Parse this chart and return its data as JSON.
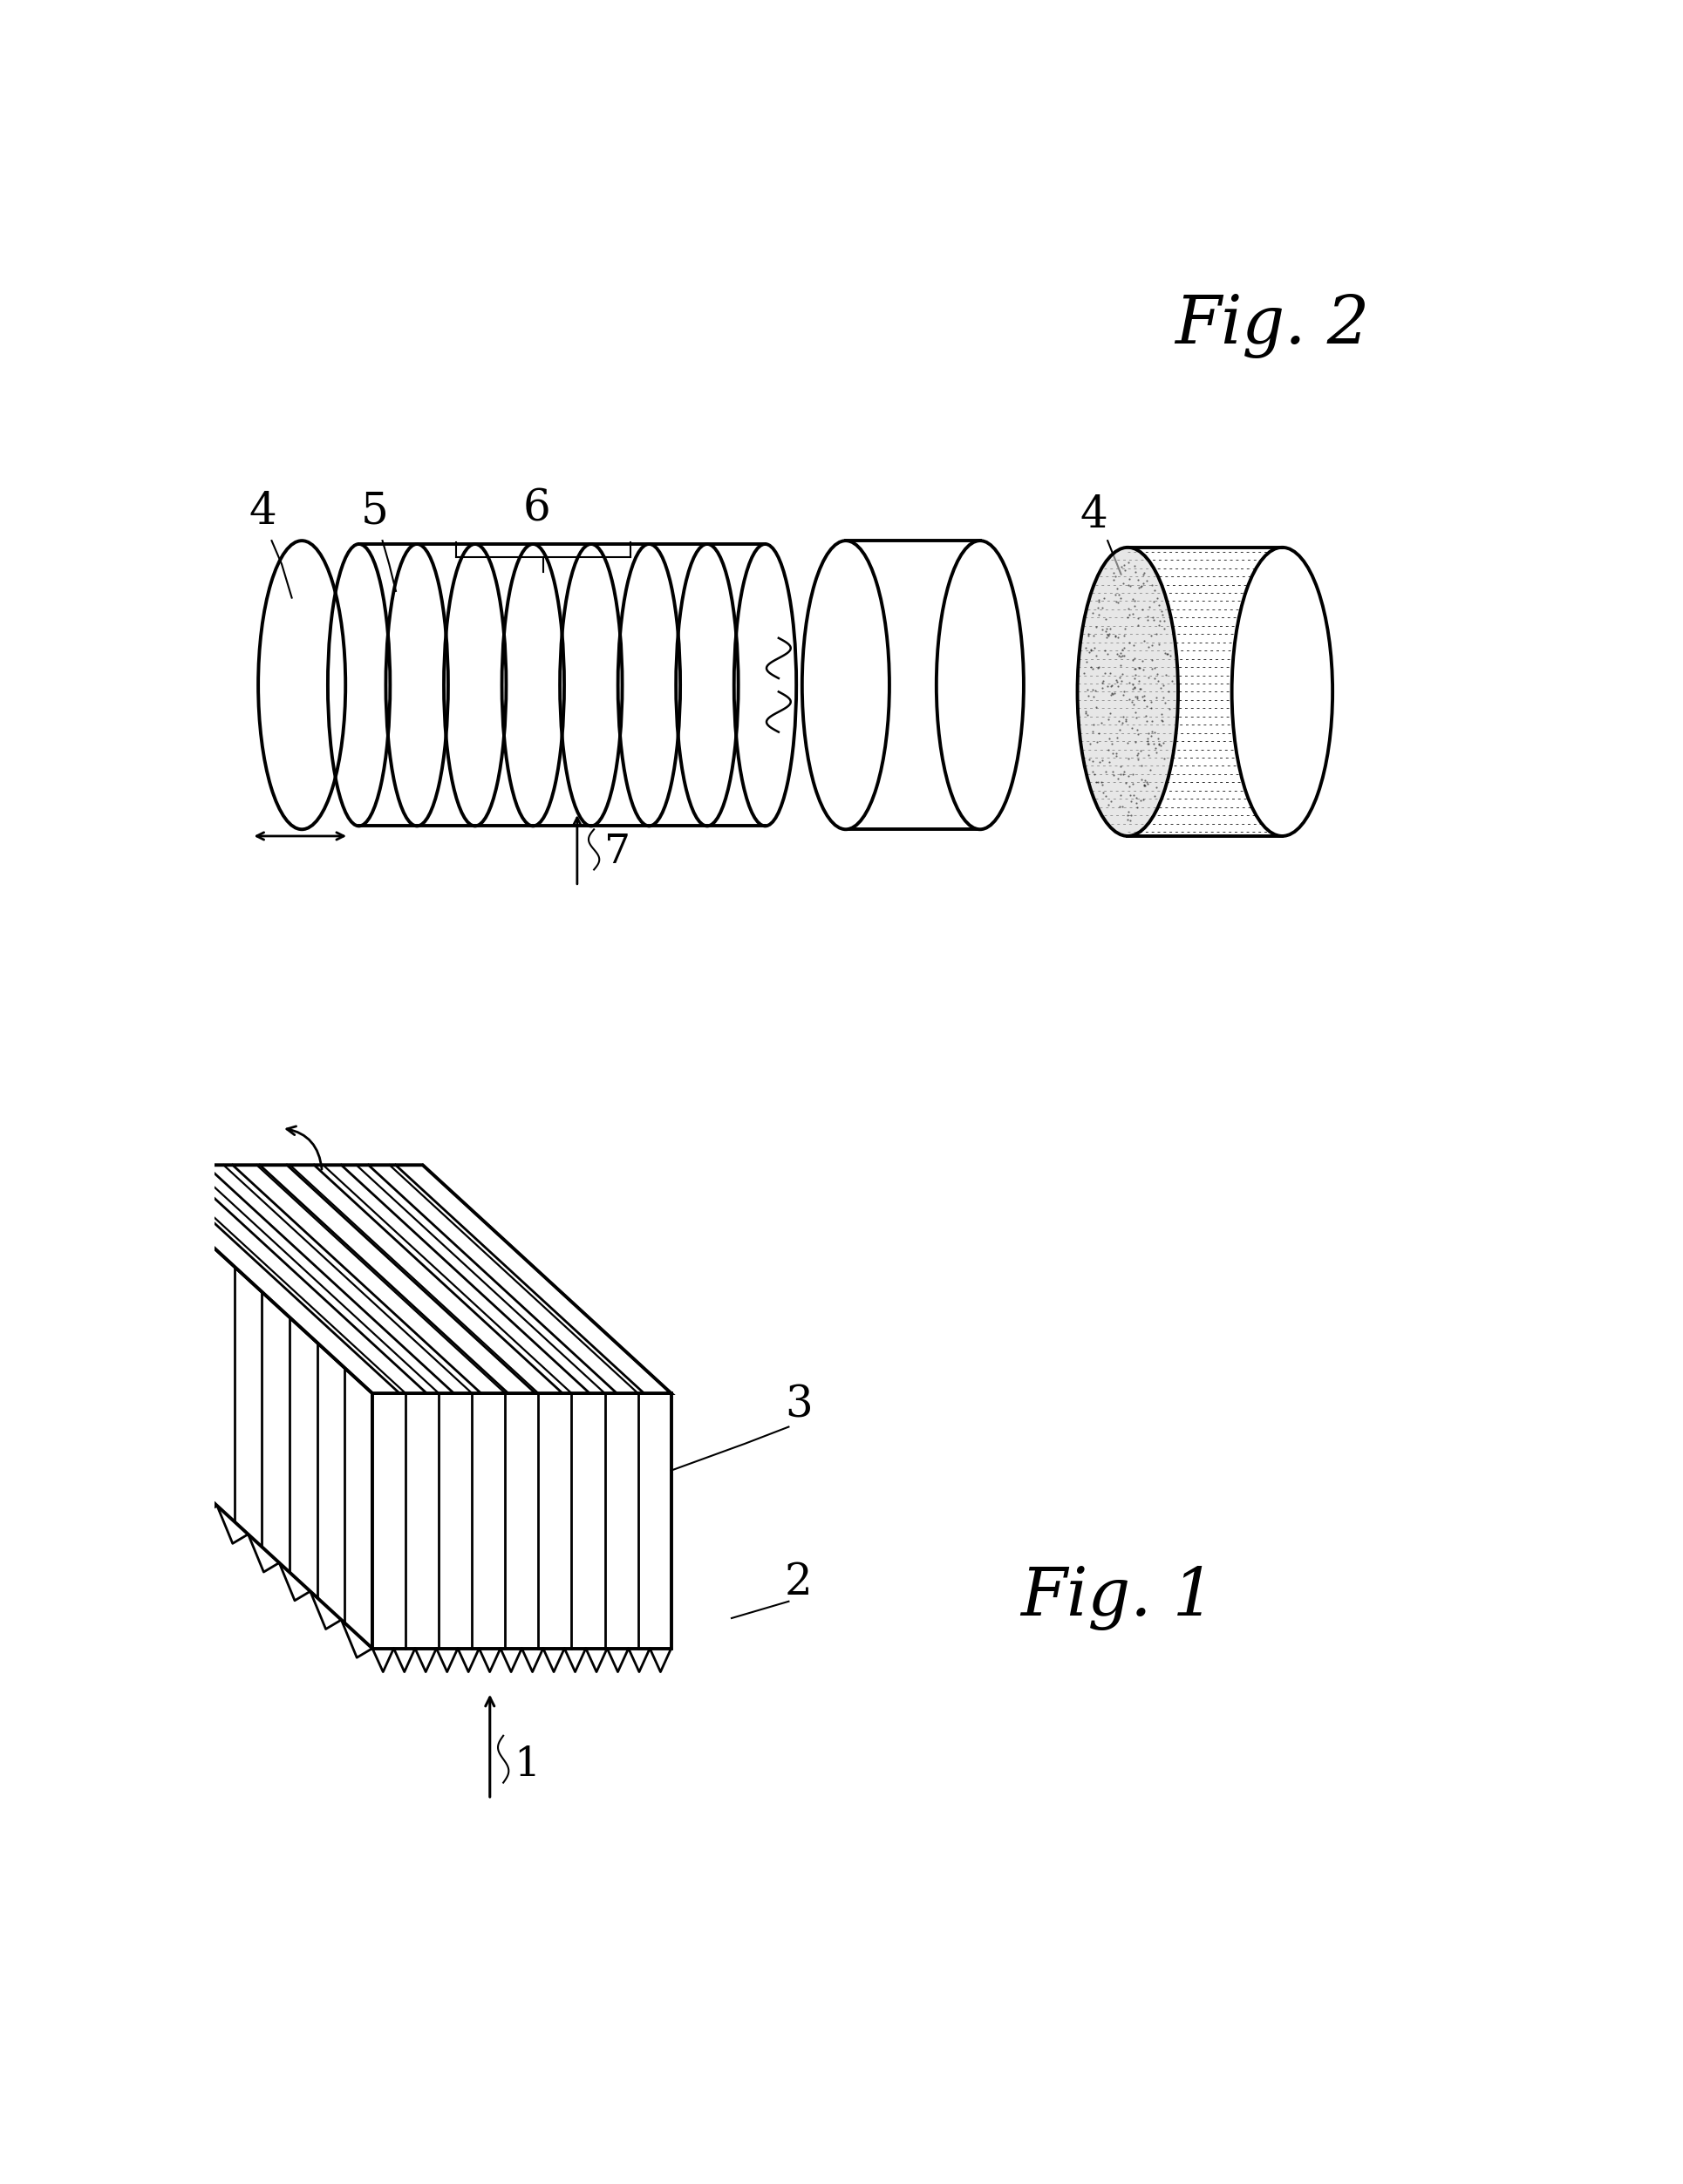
{
  "bg_color": "#ffffff",
  "line_color": "#000000",
  "lw": 2.0,
  "lw_thick": 2.8,
  "fig2_title": "Fig. 2",
  "fig1_title": "Fig. 1"
}
